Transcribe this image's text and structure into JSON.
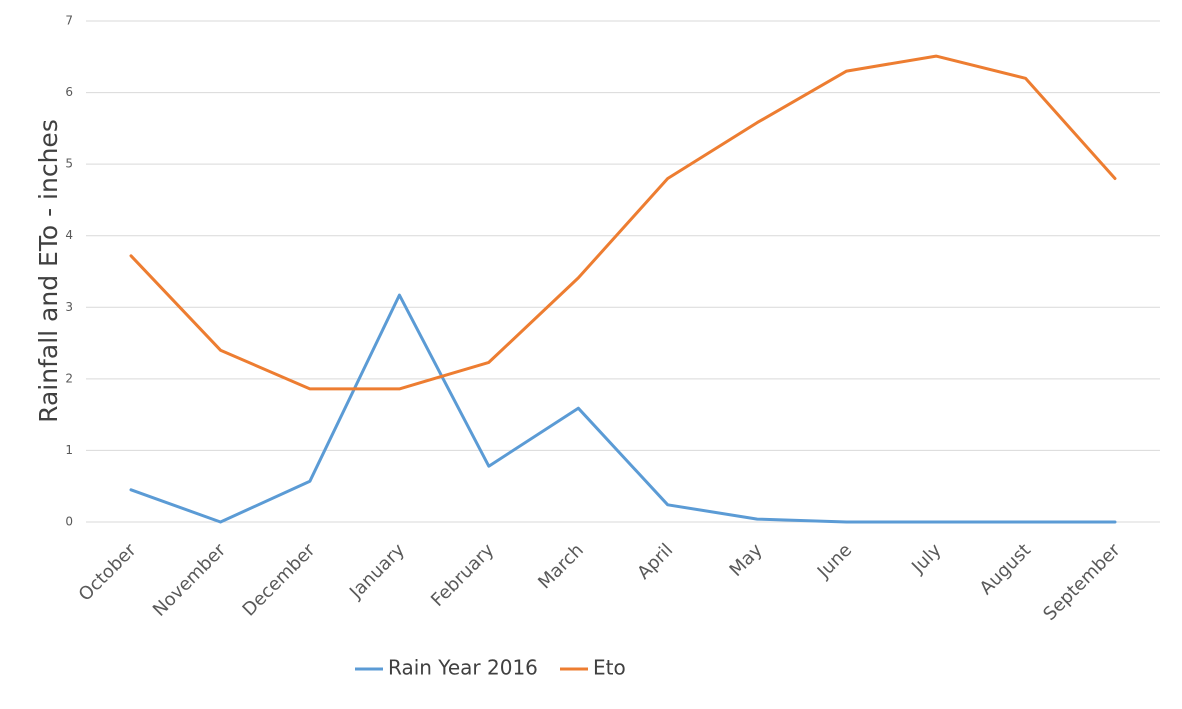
{
  "chart_data": {
    "type": "line",
    "title": "",
    "xlabel": "",
    "ylabel": "Rainfall and ETo - inches",
    "categories": [
      "October",
      "November",
      "December",
      "January",
      "February",
      "March",
      "April",
      "May",
      "June",
      "July",
      "August",
      "September"
    ],
    "series": [
      {
        "name": "Rain Year 2016",
        "color": "#5b9bd5",
        "values": [
          0.45,
          0.0,
          0.57,
          3.17,
          0.78,
          1.59,
          0.24,
          0.04,
          0.0,
          0.0,
          0.0,
          0.0
        ]
      },
      {
        "name": "Eto",
        "color": "#ed7d31",
        "values": [
          3.72,
          2.4,
          1.86,
          1.86,
          2.23,
          3.41,
          4.8,
          5.58,
          6.3,
          6.51,
          6.2,
          4.8
        ]
      }
    ],
    "ylim": [
      0,
      7
    ],
    "yticks": [
      0,
      1,
      2,
      3,
      4,
      5,
      6,
      7
    ],
    "grid": true,
    "legend": "bottom"
  }
}
